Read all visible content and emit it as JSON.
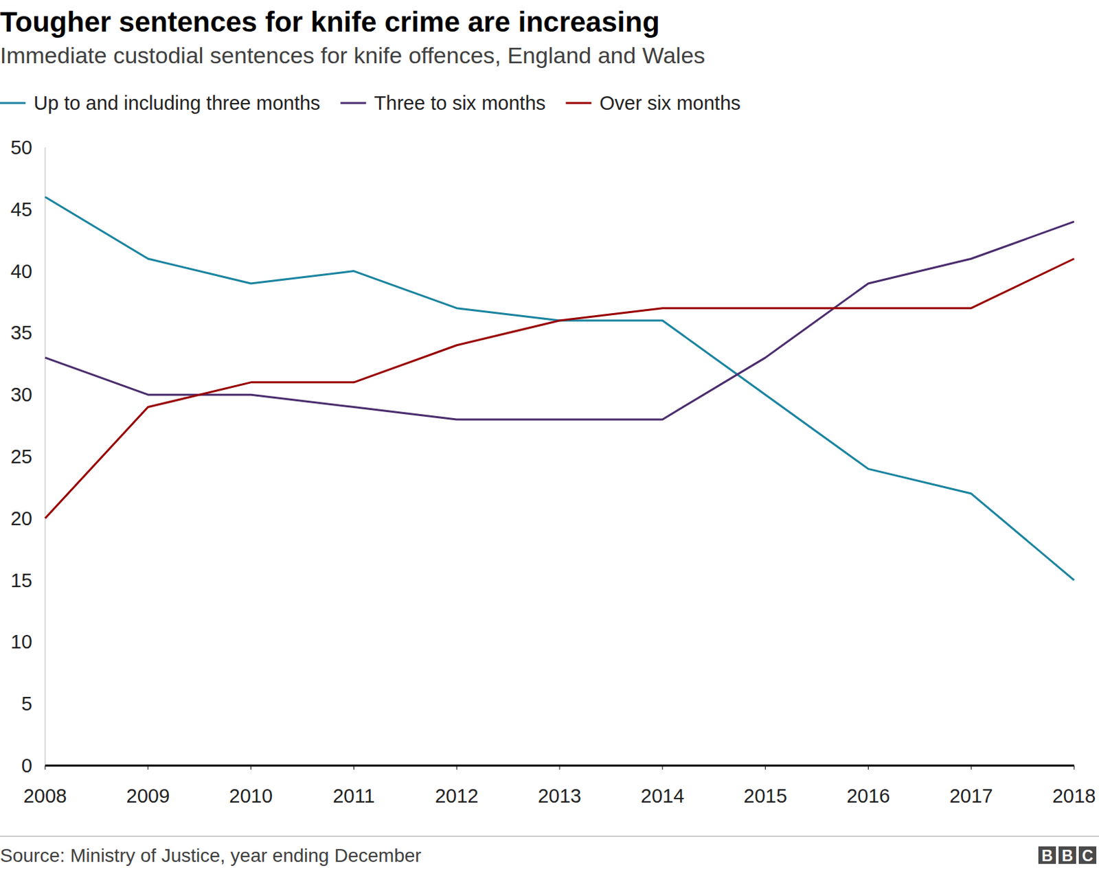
{
  "chart_data": {
    "type": "line",
    "title": "Tougher sentences for knife crime are increasing",
    "subtitle": "Immediate custodial sentences for knife offences, England and Wales",
    "source": "Source: Ministry of Justice, year ending December",
    "logo": "BBC",
    "categories": [
      "2008",
      "2009",
      "2010",
      "2011",
      "2012",
      "2013",
      "2014",
      "2015",
      "2016",
      "2017",
      "2018"
    ],
    "series": [
      {
        "name": "Up to and including three months",
        "color": "#1a84a0",
        "values": [
          46,
          41,
          39,
          40,
          37,
          36,
          36,
          30,
          24,
          22,
          15
        ]
      },
      {
        "name": "Three to six months",
        "color": "#4b2d6e",
        "values": [
          33,
          30,
          30,
          29,
          28,
          28,
          28,
          33,
          39,
          41,
          44
        ]
      },
      {
        "name": "Over six months",
        "color": "#990000",
        "values": [
          20,
          29,
          31,
          31,
          34,
          36,
          37,
          37,
          37,
          37,
          41
        ]
      }
    ],
    "ylim": [
      0,
      50
    ],
    "yticks": [
      0,
      5,
      10,
      15,
      20,
      25,
      30,
      35,
      40,
      45,
      50
    ],
    "grid": false,
    "legend": "top"
  }
}
